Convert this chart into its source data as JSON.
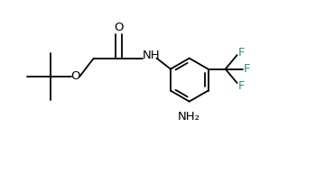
{
  "bg_color": "#ffffff",
  "line_color": "#000000",
  "f_color": "#2f8f8f",
  "figsize": [
    3.7,
    1.92
  ],
  "dpi": 100,
  "xlim": [
    0,
    10
  ],
  "ylim": [
    0,
    5.2
  ]
}
